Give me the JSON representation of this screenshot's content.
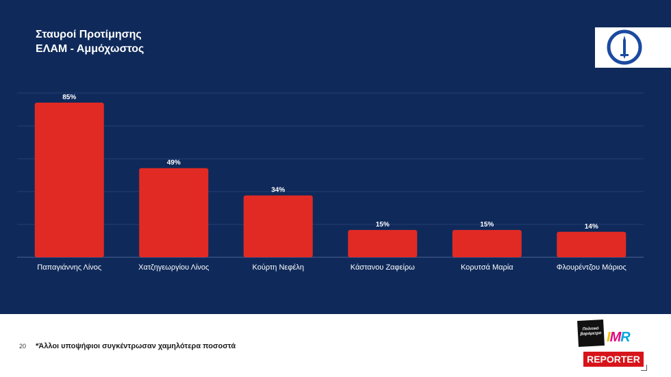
{
  "header": {
    "title_line1": "Σταυροί Προτίμησης",
    "title_line2": "ΕΛΑΜ - Αμμόχωστος"
  },
  "logo": {
    "icon": "elam-shield-logo-icon"
  },
  "chart_data": {
    "type": "bar",
    "categories": [
      "Παπαγιάννης Λίνος",
      "Χατζηγεωργίου Λίνος",
      "Κούρτη Νεφέλη",
      "Κάστανου Ζαφείρω",
      "Κορυτσά Μαρία",
      "Φλουρέντζου Μάριος"
    ],
    "values": [
      85,
      49,
      34,
      15,
      15,
      14
    ],
    "data_labels": [
      "85%",
      "49%",
      "34%",
      "15%",
      "15%",
      "14%"
    ],
    "title": "",
    "xlabel": "",
    "ylabel": "",
    "ylim": [
      0,
      100
    ],
    "grid": true,
    "bar_color": "#e22a25"
  },
  "footer": {
    "page_number": "20",
    "note": "*Άλλοι υποψήφιοι συγκέντρωσαν χαμηλότερα ποσοστά",
    "brand_politiko": "Πολιτικό βαρόμετρο",
    "brand_imr": "IMR",
    "brand_reporter": "REPORTER"
  },
  "colors": {
    "background": "#0f2a5a",
    "bar": "#e22a25",
    "text": "#ffffff"
  }
}
